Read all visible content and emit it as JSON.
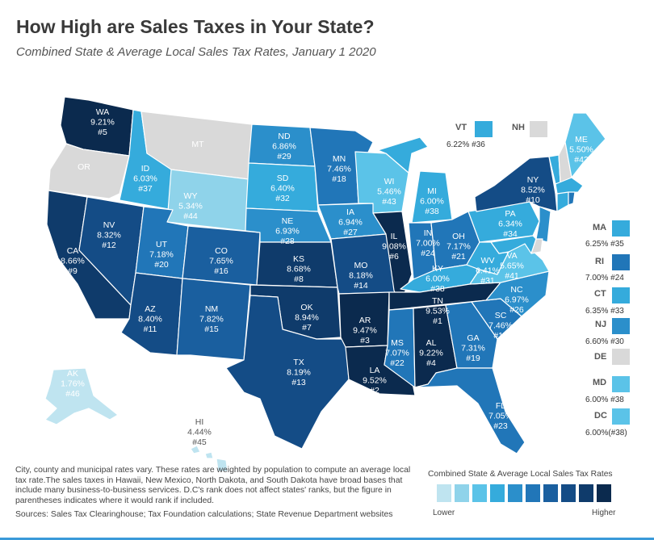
{
  "title": "How High are Sales Taxes in Your State?",
  "subtitle": "Combined State & Average Local Sales Tax Rates, January 1 2020",
  "colors": {
    "scale": [
      "#bfe4f0",
      "#8fd3ea",
      "#5bc3e8",
      "#35abdc",
      "#2b8fcb",
      "#2176b8",
      "#1a5f9f",
      "#144c86",
      "#0f3b6b",
      "#0b2a4e"
    ],
    "no_tax": "#d9d9d9"
  },
  "states": {
    "WA": {
      "name": "WA",
      "rate": "9.21%",
      "rank": "#5"
    },
    "OR": {
      "name": "OR"
    },
    "CA": {
      "name": "CA",
      "rate": "8.66%",
      "rank": "#9"
    },
    "NV": {
      "name": "NV",
      "rate": "8.32%",
      "rank": "#12"
    },
    "ID": {
      "name": "ID",
      "rate": "6.03%",
      "rank": "#37"
    },
    "MT": {
      "name": "MT"
    },
    "WY": {
      "name": "WY",
      "rate": "5.34%",
      "rank": "#44"
    },
    "UT": {
      "name": "UT",
      "rate": "7.18%",
      "rank": "#20"
    },
    "AZ": {
      "name": "AZ",
      "rate": "8.40%",
      "rank": "#11"
    },
    "CO": {
      "name": "CO",
      "rate": "7.65%",
      "rank": "#16"
    },
    "NM": {
      "name": "NM",
      "rate": "7.82%",
      "rank": "#15"
    },
    "ND": {
      "name": "ND",
      "rate": "6.86%",
      "rank": "#29"
    },
    "SD": {
      "name": "SD",
      "rate": "6.40%",
      "rank": "#32"
    },
    "NE": {
      "name": "NE",
      "rate": "6.93%",
      "rank": "#28"
    },
    "KS": {
      "name": "KS",
      "rate": "8.68%",
      "rank": "#8"
    },
    "OK": {
      "name": "OK",
      "rate": "8.94%",
      "rank": "#7"
    },
    "TX": {
      "name": "TX",
      "rate": "8.19%",
      "rank": "#13"
    },
    "MN": {
      "name": "MN",
      "rate": "7.46%",
      "rank": "#18"
    },
    "IA": {
      "name": "IA",
      "rate": "6.94%",
      "rank": "#27"
    },
    "MO": {
      "name": "MO",
      "rate": "8.18%",
      "rank": "#14"
    },
    "AR": {
      "name": "AR",
      "rate": "9.47%",
      "rank": "#3"
    },
    "LA": {
      "name": "LA",
      "rate": "9.52%",
      "rank": "#2"
    },
    "WI": {
      "name": "WI",
      "rate": "5.46%",
      "rank": "#43"
    },
    "IL": {
      "name": "IL",
      "rate": "9.08%",
      "rank": "#6"
    },
    "MS": {
      "name": "MS",
      "rate": "7.07%",
      "rank": "#22"
    },
    "MI": {
      "name": "MI",
      "rate": "6.00%",
      "rank": "#38"
    },
    "IN": {
      "name": "IN",
      "rate": "7.00%",
      "rank": "#24"
    },
    "KY": {
      "name": "KY",
      "rate": "6.00%",
      "rank": "#38"
    },
    "TN": {
      "name": "TN",
      "rate": "9.53%",
      "rank": "#1"
    },
    "AL": {
      "name": "AL",
      "rate": "9.22%",
      "rank": "#4"
    },
    "OH": {
      "name": "OH",
      "rate": "7.17%",
      "rank": "#21"
    },
    "GA": {
      "name": "GA",
      "rate": "7.31%",
      "rank": "#19"
    },
    "FL": {
      "name": "FL",
      "rate": "7.05%",
      "rank": "#23"
    },
    "SC": {
      "name": "SC",
      "rate": "7.46%",
      "rank": "#17"
    },
    "NC": {
      "name": "NC",
      "rate": "6.97%",
      "rank": "#26"
    },
    "VA": {
      "name": "VA",
      "rate": "5.65%",
      "rank": "#41"
    },
    "WV": {
      "name": "WV",
      "rate": "6.41%",
      "rank": "#31"
    },
    "PA": {
      "name": "PA",
      "rate": "6.34%",
      "rank": "#34"
    },
    "NY": {
      "name": "NY",
      "rate": "8.52%",
      "rank": "#10"
    },
    "ME": {
      "name": "ME",
      "rate": "5.50%",
      "rank": "#42"
    },
    "AK": {
      "name": "AK",
      "rate": "1.76%",
      "rank": "#46"
    },
    "HI": {
      "name": "HI",
      "rate": "4.44%",
      "rank": "#45"
    }
  },
  "side_states": {
    "VT": {
      "name": "VT",
      "rate": "6.22% #36"
    },
    "NH": {
      "name": "NH"
    },
    "MA": {
      "name": "MA",
      "rate": "6.25% #35"
    },
    "RI": {
      "name": "RI",
      "rate": "7.00% #24"
    },
    "CT": {
      "name": "CT",
      "rate": "6.35% #33"
    },
    "NJ": {
      "name": "NJ",
      "rate": "6.60% #30"
    },
    "DE": {
      "name": "DE"
    },
    "MD": {
      "name": "MD",
      "rate": "6.00% #38"
    },
    "DC": {
      "name": "DC",
      "rate": "6.00%(#38)"
    }
  },
  "footnote": "City, county and municipal rates vary. These rates are weighted by population to compute an average local tax rate.The sales taxes in Hawaii, New Mexico, North Dakota, and South Dakota have broad bases that include many business-to-business services. D.C's rank does not affect states' ranks, but the figure in parentheses indicates where it would rank if included.",
  "sources": "Sources: Sales Tax Clearinghouse; Tax Foundation calculations; State Revenue Department websites",
  "legend": {
    "title": "Combined State & Average Local Sales Tax Rates",
    "lower": "Lower",
    "higher": "Higher"
  }
}
